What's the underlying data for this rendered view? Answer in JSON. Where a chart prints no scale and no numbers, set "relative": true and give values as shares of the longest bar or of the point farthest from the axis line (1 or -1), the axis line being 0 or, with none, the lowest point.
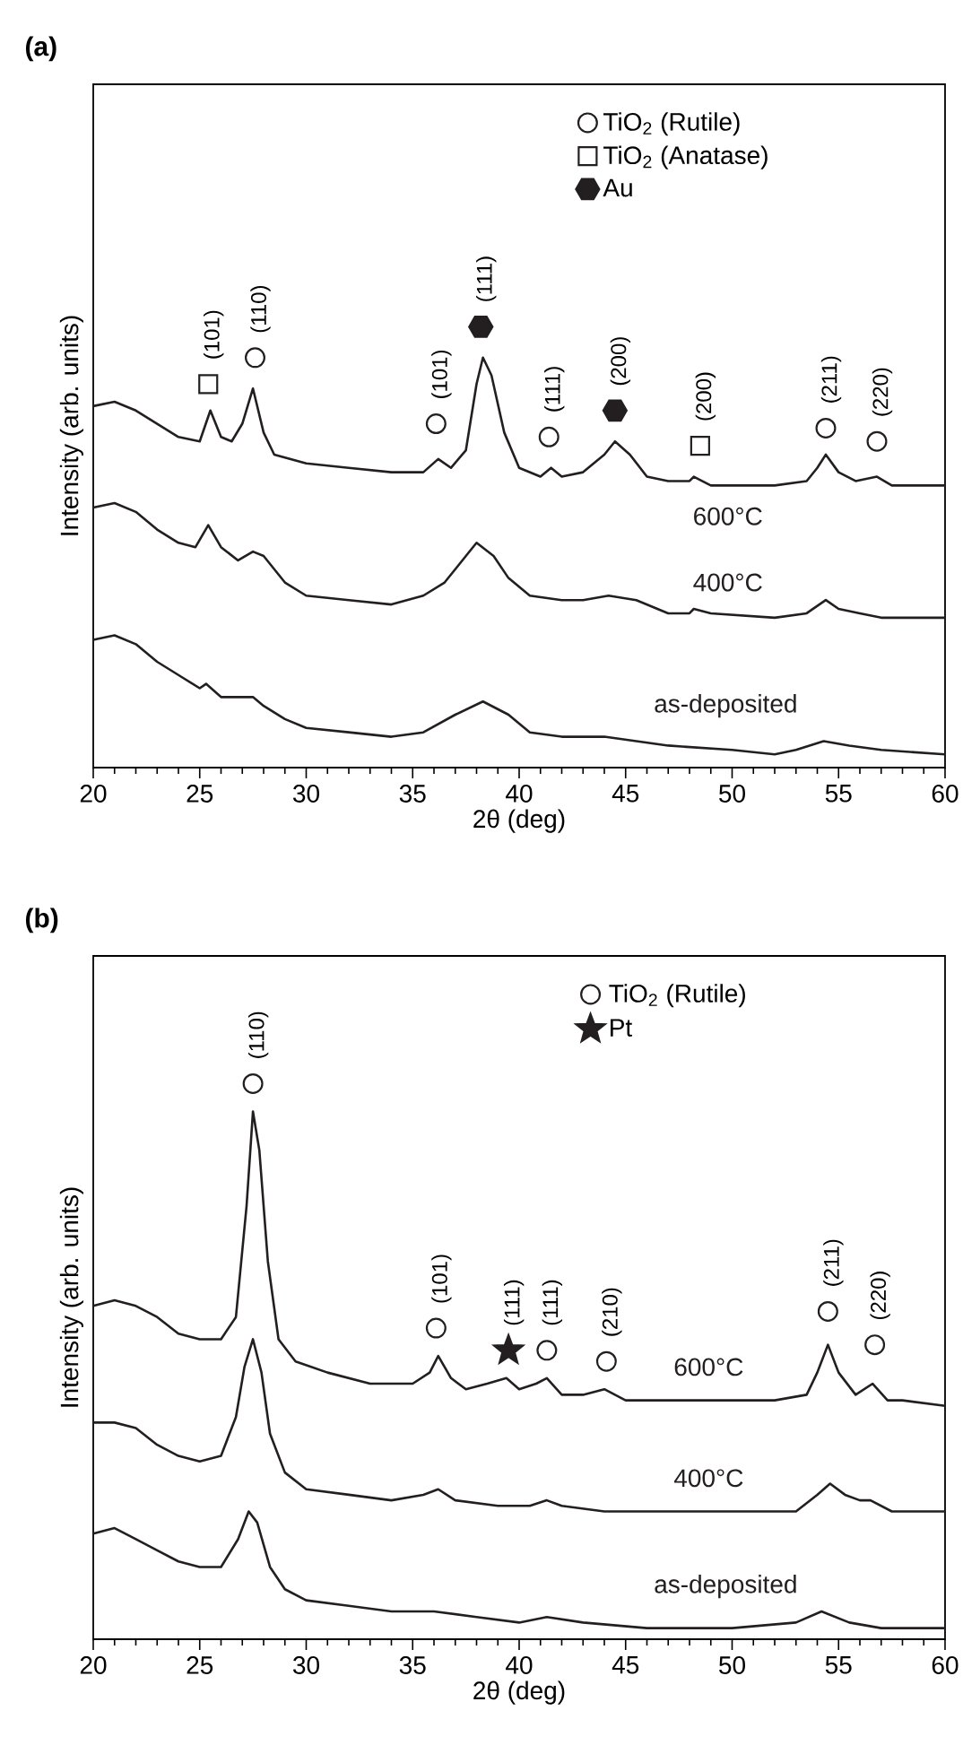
{
  "chart_data": [
    {
      "type": "line",
      "title": "(a)",
      "xlabel": "2θ (deg)",
      "ylabel": "Intensity (arb. units)",
      "relative": true,
      "xlim": [
        20,
        60
      ],
      "xticks": [
        20,
        25,
        30,
        35,
        40,
        45,
        50,
        55,
        60
      ],
      "legend": "top right",
      "line_style": "solid",
      "series": [
        {
          "name": "600°C",
          "color": "#231f20",
          "x": [
            20,
            21,
            22,
            23,
            24,
            25,
            25.5,
            26,
            26.5,
            27,
            27.5,
            28,
            28.5,
            30,
            32,
            34,
            35.5,
            36.2,
            36.8,
            37.5,
            38,
            38.3,
            38.7,
            39.3,
            40,
            41,
            41.5,
            42,
            43,
            44,
            44.5,
            45.2,
            46,
            47,
            48,
            48.2,
            49,
            52,
            53.5,
            54,
            54.4,
            55,
            55.8,
            56.8,
            57.5,
            60
          ],
          "values": [
            0.82,
            0.83,
            0.81,
            0.78,
            0.75,
            0.74,
            0.81,
            0.75,
            0.74,
            0.78,
            0.86,
            0.76,
            0.71,
            0.69,
            0.68,
            0.67,
            0.67,
            0.7,
            0.68,
            0.72,
            0.87,
            0.93,
            0.89,
            0.76,
            0.68,
            0.66,
            0.68,
            0.66,
            0.67,
            0.71,
            0.74,
            0.71,
            0.66,
            0.65,
            0.65,
            0.66,
            0.64,
            0.64,
            0.65,
            0.68,
            0.71,
            0.67,
            0.65,
            0.66,
            0.64,
            0.64
          ]
        },
        {
          "name": "400°C",
          "color": "#231f20",
          "x": [
            20,
            21,
            22,
            23,
            24,
            24.8,
            25.4,
            26,
            26.8,
            27.5,
            28,
            29,
            30,
            32,
            34,
            35.5,
            36.5,
            37.5,
            38,
            38.8,
            39.5,
            40.5,
            42,
            43,
            44.2,
            45.5,
            47,
            48,
            48.2,
            49,
            52,
            53.5,
            54.4,
            55,
            56,
            57,
            60
          ],
          "values": [
            0.59,
            0.6,
            0.58,
            0.54,
            0.51,
            0.5,
            0.55,
            0.5,
            0.47,
            0.49,
            0.48,
            0.42,
            0.39,
            0.38,
            0.37,
            0.39,
            0.42,
            0.48,
            0.51,
            0.48,
            0.43,
            0.39,
            0.38,
            0.38,
            0.39,
            0.38,
            0.35,
            0.35,
            0.36,
            0.35,
            0.34,
            0.35,
            0.38,
            0.36,
            0.35,
            0.34,
            0.34
          ]
        },
        {
          "name": "as-deposited",
          "color": "#231f20",
          "x": [
            20,
            21,
            22,
            23,
            24,
            25,
            25.3,
            26,
            27,
            27.5,
            28,
            29,
            30,
            32,
            34,
            35.5,
            37,
            38.3,
            39.5,
            40.5,
            42,
            44,
            45.5,
            47,
            50,
            52,
            53,
            54.3,
            55.5,
            57,
            60
          ],
          "values": [
            0.29,
            0.3,
            0.28,
            0.24,
            0.21,
            0.18,
            0.19,
            0.16,
            0.16,
            0.16,
            0.14,
            0.11,
            0.09,
            0.08,
            0.07,
            0.08,
            0.12,
            0.15,
            0.12,
            0.08,
            0.07,
            0.07,
            0.06,
            0.05,
            0.04,
            0.03,
            0.04,
            0.06,
            0.05,
            0.04,
            0.03
          ]
        },
        {
          "name": "TiO$_{2}$ (Rutile)",
          "type": "scatter",
          "marker": "circle",
          "color": "#231f20",
          "x": [
            27.6,
            36.1,
            41.4,
            54.4,
            56.8
          ],
          "values": [
            0.93,
            0.78,
            0.75,
            0.77,
            0.74
          ]
        },
        {
          "name": "TiO$_{2}$ (Anatase)",
          "type": "scatter",
          "marker": "square",
          "color": "#231f20",
          "x": [
            25.4,
            48.5
          ],
          "values": [
            0.87,
            0.73
          ]
        },
        {
          "name": "Au",
          "type": "scatter",
          "color": "#231f20",
          "x": [
            38.2,
            44.5
          ],
          "values": [
            1.0,
            0.81
          ]
        }
      ],
      "annotations": [
        {
          "text": "(101)",
          "x": 25.4,
          "y": 0.87
        },
        {
          "text": "(110)",
          "x": 27.6,
          "y": 0.93
        },
        {
          "text": "(101)",
          "x": 36.1,
          "y": 0.78
        },
        {
          "text": "(111)",
          "x": 38.2,
          "y": 1.0
        },
        {
          "text": "(111)",
          "x": 41.4,
          "y": 0.75
        },
        {
          "text": "(200)",
          "x": 44.5,
          "y": 0.81
        },
        {
          "text": "(200)",
          "x": 48.5,
          "y": 0.73
        },
        {
          "text": "(211)",
          "x": 54.4,
          "y": 0.77
        },
        {
          "text": "(220)",
          "x": 56.8,
          "y": 0.74
        }
      ]
    },
    {
      "type": "line",
      "title": "(b)",
      "xlabel": "2θ (deg)",
      "ylabel": "Intensity (arb. units)",
      "relative": true,
      "xlim": [
        20,
        60
      ],
      "xticks": [
        20,
        25,
        30,
        35,
        40,
        45,
        50,
        55,
        60
      ],
      "legend": "top right",
      "line_style": "solid",
      "series": [
        {
          "name": "600°C",
          "color": "#231f20",
          "x": [
            20,
            21,
            22,
            23,
            24,
            25,
            26,
            26.7,
            27.2,
            27.5,
            27.8,
            28.2,
            28.7,
            29.5,
            31,
            33,
            35,
            35.8,
            36.2,
            36.8,
            37.5,
            38.5,
            39.4,
            40,
            40.8,
            41.3,
            42,
            43,
            44,
            45,
            48,
            52,
            53.5,
            54,
            54.5,
            55,
            55.8,
            56.6,
            57.3,
            58,
            60
          ],
          "values": [
            0.6,
            0.61,
            0.6,
            0.58,
            0.55,
            0.54,
            0.54,
            0.58,
            0.78,
            0.95,
            0.88,
            0.68,
            0.54,
            0.5,
            0.48,
            0.46,
            0.46,
            0.48,
            0.51,
            0.47,
            0.45,
            0.46,
            0.47,
            0.45,
            0.46,
            0.47,
            0.44,
            0.44,
            0.45,
            0.43,
            0.43,
            0.43,
            0.44,
            0.48,
            0.53,
            0.48,
            0.44,
            0.46,
            0.43,
            0.43,
            0.42
          ]
        },
        {
          "name": "400°C",
          "color": "#231f20",
          "x": [
            20,
            21,
            22,
            23,
            24,
            25,
            26,
            26.7,
            27.1,
            27.5,
            27.9,
            28.3,
            29,
            30,
            32,
            34,
            35.5,
            36.2,
            37,
            39,
            40.5,
            41.3,
            42,
            44,
            46,
            50,
            53,
            54,
            54.6,
            55.3,
            56,
            56.5,
            57.5,
            60
          ],
          "values": [
            0.39,
            0.39,
            0.38,
            0.35,
            0.33,
            0.32,
            0.33,
            0.4,
            0.49,
            0.54,
            0.48,
            0.37,
            0.3,
            0.27,
            0.26,
            0.25,
            0.26,
            0.27,
            0.25,
            0.24,
            0.24,
            0.25,
            0.24,
            0.23,
            0.23,
            0.23,
            0.23,
            0.26,
            0.28,
            0.26,
            0.25,
            0.25,
            0.23,
            0.23
          ]
        },
        {
          "name": "as-deposited",
          "color": "#231f20",
          "x": [
            20,
            21,
            22,
            23,
            24,
            25,
            26,
            26.8,
            27.3,
            27.7,
            28.3,
            29,
            30,
            32,
            34,
            36,
            38,
            40,
            41.3,
            43,
            46,
            50,
            53,
            54.2,
            55.5,
            57,
            60
          ],
          "values": [
            0.19,
            0.2,
            0.18,
            0.16,
            0.14,
            0.13,
            0.13,
            0.18,
            0.23,
            0.21,
            0.13,
            0.09,
            0.07,
            0.06,
            0.05,
            0.05,
            0.04,
            0.03,
            0.04,
            0.03,
            0.02,
            0.02,
            0.03,
            0.05,
            0.03,
            0.02,
            0.02
          ]
        },
        {
          "name": "TiO$_{2}$ (Rutile)",
          "type": "scatter",
          "marker": "circle",
          "color": "#231f20",
          "x": [
            27.5,
            36.1,
            41.3,
            44.1,
            54.5,
            56.7
          ],
          "values": [
            1.0,
            0.56,
            0.52,
            0.5,
            0.59,
            0.53
          ]
        },
        {
          "name": "Pt",
          "type": "scatter",
          "marker": "star",
          "color": "#231f20",
          "x": [
            39.5
          ],
          "values": [
            0.52
          ]
        }
      ],
      "annotations": [
        {
          "text": "(110)",
          "x": 27.5,
          "y": 1.0
        },
        {
          "text": "(101)",
          "x": 36.1,
          "y": 0.56
        },
        {
          "text": "(111)",
          "x": 39.5,
          "y": 0.52
        },
        {
          "text": "(111)",
          "x": 41.3,
          "y": 0.52
        },
        {
          "text": "(210)",
          "x": 44.1,
          "y": 0.5
        },
        {
          "text": "(211)",
          "x": 54.5,
          "y": 0.59
        },
        {
          "text": "(220)",
          "x": 56.7,
          "y": 0.53
        }
      ]
    }
  ]
}
